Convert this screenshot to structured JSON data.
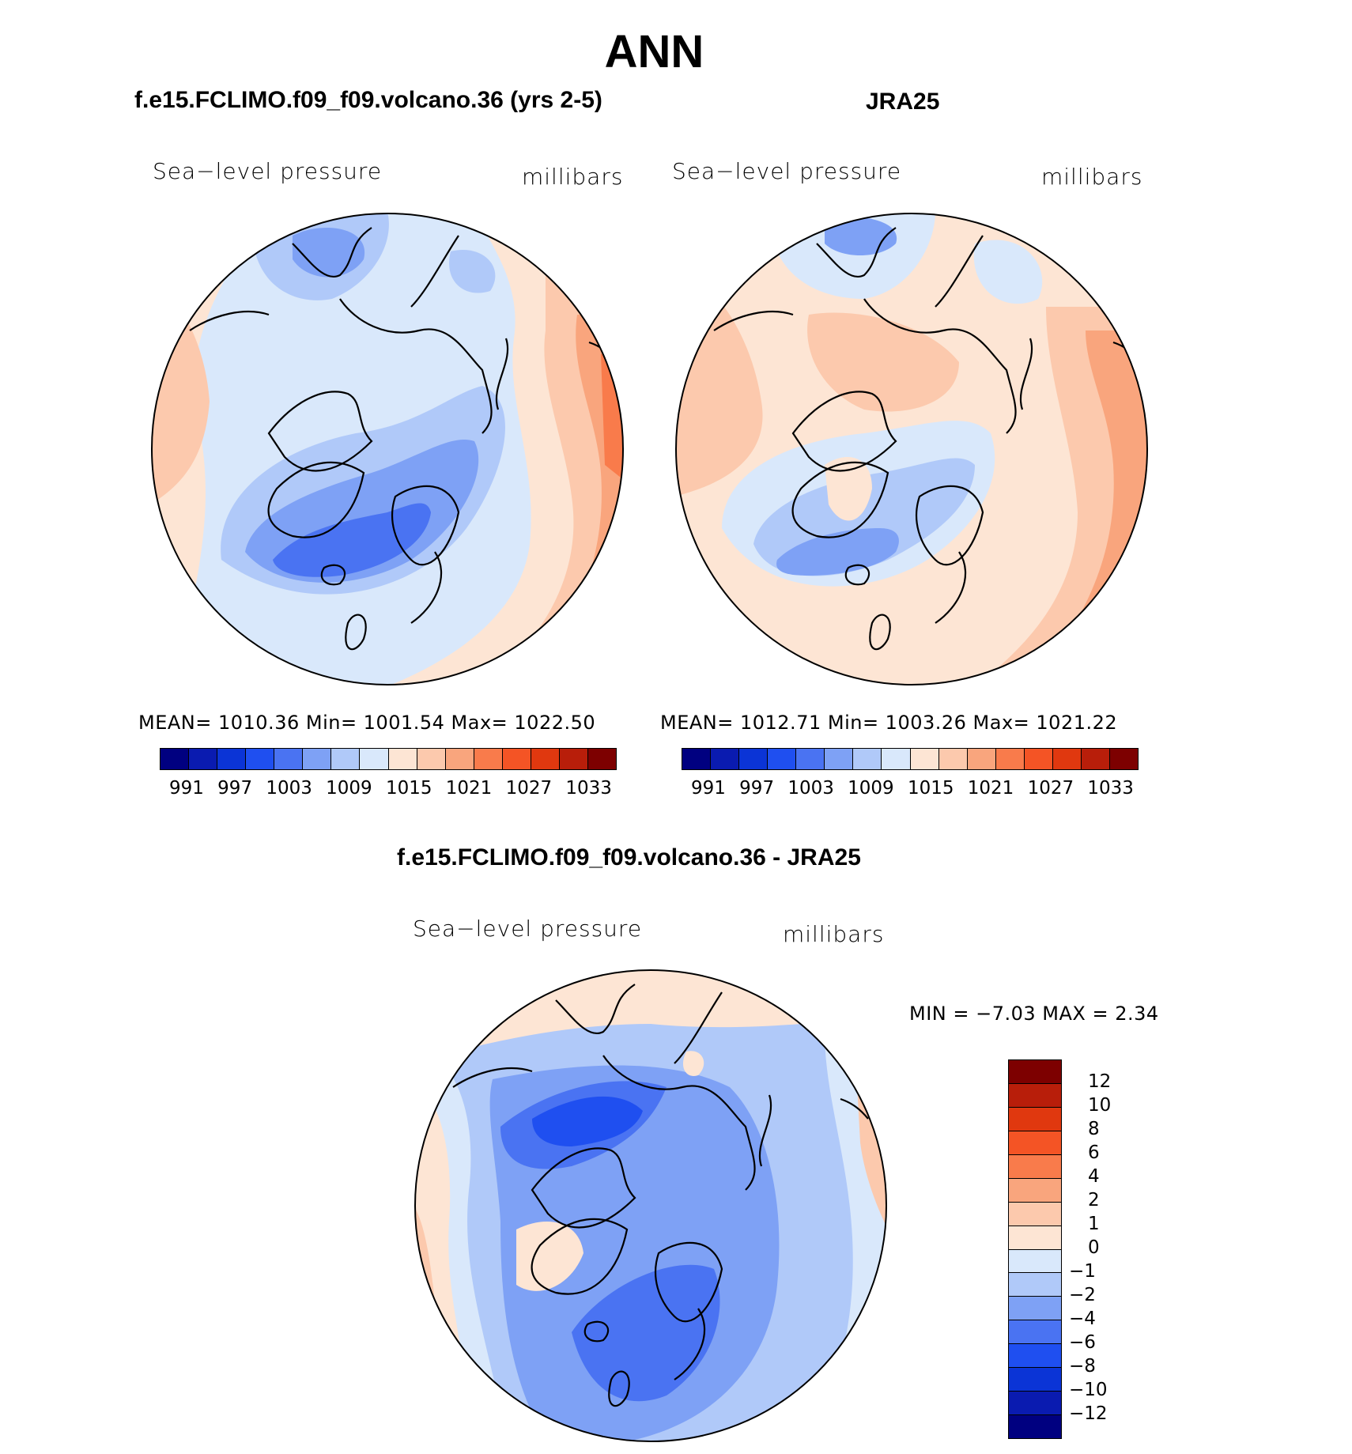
{
  "title": "ANN",
  "panels": {
    "model": {
      "case_title": "f.e15.FCLIMO.f09_f09.volcano.36 (yrs 2-5)",
      "left_label": "Sea−level pressure",
      "right_label": "millibars",
      "stats": "MEAN=  1010.36   Min=  1001.54   Max=  1022.50",
      "colorbar_labels": [
        "991",
        "997",
        "1003",
        "1009",
        "1015",
        "1021",
        "1027",
        "1033"
      ]
    },
    "obs": {
      "case_title": "JRA25",
      "left_label": "Sea−level pressure",
      "right_label": "millibars",
      "stats": "MEAN=  1012.71   Min=  1003.26   Max=  1021.22",
      "colorbar_labels": [
        "991",
        "997",
        "1003",
        "1009",
        "1015",
        "1021",
        "1027",
        "1033"
      ]
    },
    "diff": {
      "case_title": "f.e15.FCLIMO.f09_f09.volcano.36 - JRA25",
      "left_label": "Sea−level pressure",
      "right_label": "millibars",
      "stats": "MIN  =    −7.03  MAX  =      2.34",
      "colorbar_labels": [
        "12",
        "10",
        "8",
        "6",
        "4",
        "2",
        "1",
        "0",
        "−1",
        "−2",
        "−4",
        "−6",
        "−8",
        "−10",
        "−12"
      ]
    }
  },
  "colors": {
    "abs_scale": [
      "#000080",
      "#0a1bb0",
      "#0b34d6",
      "#1f4ff0",
      "#4a73f2",
      "#7ea1f5",
      "#b0c9f9",
      "#d9e8fb",
      "#fde5d4",
      "#fcc9ad",
      "#f9a57d",
      "#f97b4b",
      "#f45425",
      "#e0380f",
      "#b81e0a",
      "#7d0000"
    ],
    "diff_scale": [
      "#7d0000",
      "#b81e0a",
      "#e0380f",
      "#f45425",
      "#f97b4b",
      "#f9a57d",
      "#fcc9ad",
      "#fde5d4",
      "#d9e8fb",
      "#b0c9f9",
      "#7ea1f5",
      "#4a73f2",
      "#1f4ff0",
      "#0b34d6",
      "#0a1bb0",
      "#000080"
    ]
  }
}
